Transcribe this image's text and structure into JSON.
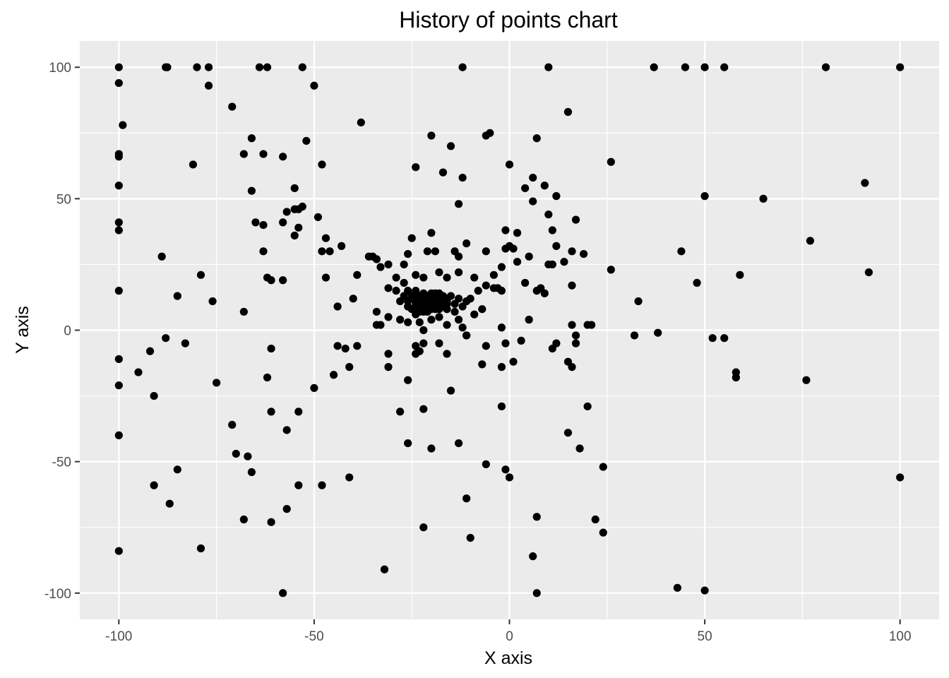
{
  "colors": {
    "panel_background": "#EBEBEB",
    "grid_major": "#FFFFFF",
    "point": "#000000",
    "tick_label": "#4D4D4D"
  },
  "chart_data": {
    "type": "scatter",
    "title": "History of points chart",
    "xlabel": "X axis",
    "ylabel": "Y axis",
    "xlim": [
      -110,
      110
    ],
    "ylim": [
      -110,
      110
    ],
    "x_ticks": [
      -100,
      -50,
      0,
      50,
      100
    ],
    "y_ticks": [
      -100,
      -50,
      0,
      50,
      100
    ],
    "x_tick_labels": [
      "-100",
      "-50",
      "0",
      "50",
      "100"
    ],
    "y_tick_labels": [
      "-100",
      "-50",
      "0",
      "50",
      "100"
    ],
    "grid": true,
    "legend": "none",
    "points": [
      [
        -100,
        100
      ],
      [
        -88,
        100
      ],
      [
        -80,
        100
      ],
      [
        -77,
        100
      ],
      [
        -64,
        100
      ],
      [
        -62,
        100
      ],
      [
        -53,
        100
      ],
      [
        -12,
        100
      ],
      [
        10,
        100
      ],
      [
        37,
        100
      ],
      [
        45,
        100
      ],
      [
        50,
        100
      ],
      [
        55,
        100
      ],
      [
        81,
        100
      ],
      [
        100,
        100
      ],
      [
        -87.6,
        100
      ],
      [
        -100,
        94
      ],
      [
        -50,
        93
      ],
      [
        -77,
        93
      ],
      [
        -71,
        85
      ],
      [
        -99,
        78
      ],
      [
        -38,
        79
      ],
      [
        15,
        83
      ],
      [
        -5,
        75
      ],
      [
        -6,
        74
      ],
      [
        -20,
        74
      ],
      [
        -66,
        73
      ],
      [
        -52,
        72
      ],
      [
        7,
        73
      ],
      [
        -15,
        70
      ],
      [
        -100,
        67
      ],
      [
        -100,
        66
      ],
      [
        -68,
        67
      ],
      [
        -63,
        67
      ],
      [
        -58,
        66
      ],
      [
        -81,
        63
      ],
      [
        -48,
        63
      ],
      [
        -24,
        62
      ],
      [
        0,
        63
      ],
      [
        26,
        64
      ],
      [
        -17,
        60
      ],
      [
        -12,
        58
      ],
      [
        6,
        58
      ],
      [
        -100,
        55
      ],
      [
        4,
        54
      ],
      [
        9,
        55
      ],
      [
        12,
        51
      ],
      [
        50,
        51
      ],
      [
        65,
        50
      ],
      [
        91,
        56
      ],
      [
        -55,
        54
      ],
      [
        -66,
        53
      ],
      [
        -53,
        47
      ],
      [
        -55,
        46
      ],
      [
        -54,
        46
      ],
      [
        -57,
        45
      ],
      [
        -13,
        48
      ],
      [
        6,
        49
      ],
      [
        -49,
        43
      ],
      [
        -100,
        41
      ],
      [
        -100,
        38
      ],
      [
        -65,
        41
      ],
      [
        -63,
        40
      ],
      [
        -58,
        41
      ],
      [
        -54,
        39
      ],
      [
        -55,
        36
      ],
      [
        -47,
        35
      ],
      [
        -20,
        37
      ],
      [
        -1,
        38
      ],
      [
        2,
        37
      ],
      [
        10,
        44
      ],
      [
        17,
        42
      ],
      [
        11,
        38
      ],
      [
        -25,
        35
      ],
      [
        -43,
        32
      ],
      [
        -48,
        30
      ],
      [
        -46,
        30
      ],
      [
        -63,
        30
      ],
      [
        -89,
        28
      ],
      [
        -35,
        28
      ],
      [
        -36,
        28
      ],
      [
        -21,
        30
      ],
      [
        -14,
        30
      ],
      [
        -13,
        28
      ],
      [
        -19,
        30
      ],
      [
        -11,
        33
      ],
      [
        -6,
        30
      ],
      [
        -1,
        31
      ],
      [
        0,
        32
      ],
      [
        1,
        31
      ],
      [
        12,
        32
      ],
      [
        16,
        30
      ],
      [
        19,
        29
      ],
      [
        2,
        26
      ],
      [
        5,
        28
      ],
      [
        10,
        25
      ],
      [
        14,
        26
      ],
      [
        26,
        23
      ],
      [
        44,
        30
      ],
      [
        59,
        21
      ],
      [
        77,
        34
      ],
      [
        92,
        22
      ],
      [
        -79,
        21
      ],
      [
        -62,
        20
      ],
      [
        -61,
        19
      ],
      [
        -58,
        19
      ],
      [
        -47,
        20
      ],
      [
        -39,
        21
      ],
      [
        -34,
        27
      ],
      [
        -33,
        24
      ],
      [
        -31,
        25
      ],
      [
        -29,
        20
      ],
      [
        -27,
        25
      ],
      [
        -26,
        29
      ],
      [
        -24,
        21
      ],
      [
        -22,
        20
      ],
      [
        -18,
        22
      ],
      [
        -16,
        20
      ],
      [
        -13,
        22
      ],
      [
        -9,
        20
      ],
      [
        -4,
        21
      ],
      [
        -2,
        24
      ],
      [
        4,
        18
      ],
      [
        11,
        25
      ],
      [
        48,
        18
      ],
      [
        -100,
        15
      ],
      [
        -85,
        13
      ],
      [
        -76,
        11
      ],
      [
        -68,
        7
      ],
      [
        -44,
        9
      ],
      [
        -40,
        12
      ],
      [
        -31,
        16
      ],
      [
        -29,
        15
      ],
      [
        -27,
        18
      ],
      [
        -26,
        15
      ],
      [
        -25,
        12
      ],
      [
        -24,
        10
      ],
      [
        -23,
        9
      ],
      [
        -22,
        14
      ],
      [
        -21,
        11
      ],
      [
        -20,
        10
      ],
      [
        -19,
        12
      ],
      [
        -18,
        11
      ],
      [
        -17,
        9
      ],
      [
        -16,
        8
      ],
      [
        -15,
        13
      ],
      [
        -14,
        10
      ],
      [
        -13,
        12
      ],
      [
        -12,
        9
      ],
      [
        -11,
        11
      ],
      [
        -10,
        12
      ],
      [
        -8,
        15
      ],
      [
        -6,
        17
      ],
      [
        -4,
        16
      ],
      [
        -3,
        16
      ],
      [
        -2,
        15
      ],
      [
        7,
        15
      ],
      [
        8,
        16
      ],
      [
        9,
        14
      ],
      [
        16,
        17
      ],
      [
        33,
        11
      ],
      [
        -28,
        11
      ],
      [
        -27,
        13
      ],
      [
        -26,
        9
      ],
      [
        -25,
        8
      ],
      [
        -24,
        11
      ],
      [
        -23,
        13
      ],
      [
        -22,
        10
      ],
      [
        -21,
        8
      ],
      [
        -20,
        13
      ],
      [
        -19,
        9
      ],
      [
        -18,
        8
      ],
      [
        -23,
        7
      ],
      [
        -22,
        8
      ],
      [
        -21,
        12
      ],
      [
        -20,
        12
      ],
      [
        -19,
        14
      ],
      [
        -18,
        13
      ],
      [
        -17,
        12
      ],
      [
        -24,
        15
      ],
      [
        -23,
        12
      ],
      [
        -22,
        11
      ],
      [
        -21,
        9
      ],
      [
        -20,
        9
      ],
      [
        -19,
        11
      ],
      [
        -18,
        10
      ],
      [
        -17,
        11
      ],
      [
        -23,
        10
      ],
      [
        -21,
        13
      ],
      [
        -22,
        7
      ],
      [
        -20,
        14
      ],
      [
        -19,
        8
      ],
      [
        -18,
        12
      ],
      [
        -17,
        10
      ],
      [
        -16,
        11
      ],
      [
        -24,
        9
      ],
      [
        -23,
        11
      ],
      [
        -22,
        12
      ],
      [
        -21,
        10
      ],
      [
        -20,
        8
      ],
      [
        -19,
        10
      ],
      [
        -18,
        9
      ],
      [
        -16,
        10
      ],
      [
        -25,
        13
      ],
      [
        -26,
        11
      ],
      [
        -24,
        13
      ],
      [
        -22,
        13
      ],
      [
        -21,
        7
      ],
      [
        -20,
        11
      ],
      [
        -19,
        13
      ],
      [
        -18,
        14
      ],
      [
        -17,
        13
      ],
      [
        -16,
        12
      ],
      [
        -34,
        7
      ],
      [
        -33,
        2
      ],
      [
        -31,
        5
      ],
      [
        -28,
        4
      ],
      [
        -26,
        3
      ],
      [
        -24,
        6
      ],
      [
        -23,
        3
      ],
      [
        -22,
        0
      ],
      [
        -20,
        4
      ],
      [
        -18,
        5
      ],
      [
        -16,
        2
      ],
      [
        -14,
        7
      ],
      [
        -13,
        4
      ],
      [
        -12,
        1
      ],
      [
        -11,
        -2
      ],
      [
        -9,
        6
      ],
      [
        -7,
        8
      ],
      [
        -2,
        1
      ],
      [
        5,
        4
      ],
      [
        16,
        2
      ],
      [
        20,
        2
      ],
      [
        21,
        2
      ],
      [
        17,
        -2
      ],
      [
        32,
        -2
      ],
      [
        38,
        -1
      ],
      [
        52,
        -3
      ],
      [
        55,
        -3
      ],
      [
        -34,
        2
      ],
      [
        -100,
        -11
      ],
      [
        -100,
        -21
      ],
      [
        -95,
        -16
      ],
      [
        -92,
        -8
      ],
      [
        -88,
        -3
      ],
      [
        -83,
        -5
      ],
      [
        -61,
        -7
      ],
      [
        -44,
        -6
      ],
      [
        -42,
        -7
      ],
      [
        -39,
        -6
      ],
      [
        -31,
        -9
      ],
      [
        -24,
        -6
      ],
      [
        -23,
        -8
      ],
      [
        -22,
        -5
      ],
      [
        -18,
        -5
      ],
      [
        -16,
        -9
      ],
      [
        -11,
        -2
      ],
      [
        -7,
        -13
      ],
      [
        -6,
        -6
      ],
      [
        -2,
        -14
      ],
      [
        -1,
        -5
      ],
      [
        1,
        -12
      ],
      [
        3,
        -4
      ],
      [
        11,
        -7
      ],
      [
        12,
        -5
      ],
      [
        15,
        -12
      ],
      [
        16,
        -14
      ],
      [
        17,
        -5
      ],
      [
        -24,
        -9
      ],
      [
        -41,
        -14
      ],
      [
        -45,
        -17
      ],
      [
        -50,
        -22
      ],
      [
        -62,
        -18
      ],
      [
        -75,
        -20
      ],
      [
        -91,
        -25
      ],
      [
        -26,
        -19
      ],
      [
        -15,
        -23
      ],
      [
        -2,
        -29
      ],
      [
        20,
        -29
      ],
      [
        58,
        -16
      ],
      [
        58,
        -18
      ],
      [
        76,
        -19
      ],
      [
        -31,
        -14
      ],
      [
        -28,
        -31
      ],
      [
        -22,
        -30
      ],
      [
        -61,
        -31
      ],
      [
        -54,
        -31
      ],
      [
        -71,
        -36
      ],
      [
        -57,
        -38
      ],
      [
        -100,
        -40
      ],
      [
        -70,
        -47
      ],
      [
        -67,
        -48
      ],
      [
        -26,
        -43
      ],
      [
        -13,
        -43
      ],
      [
        -20,
        -45
      ],
      [
        15,
        -39
      ],
      [
        18,
        -45
      ],
      [
        -85,
        -53
      ],
      [
        -66,
        -54
      ],
      [
        -6,
        -51
      ],
      [
        -1,
        -53
      ],
      [
        24,
        -52
      ],
      [
        -91,
        -59
      ],
      [
        -54,
        -59
      ],
      [
        -48,
        -59
      ],
      [
        -41,
        -56
      ],
      [
        0,
        -56
      ],
      [
        100,
        -56
      ],
      [
        -87,
        -66
      ],
      [
        -57,
        -68
      ],
      [
        -11,
        -64
      ],
      [
        -68,
        -72
      ],
      [
        -61,
        -73
      ],
      [
        7,
        -71
      ],
      [
        22,
        -72
      ],
      [
        -22,
        -75
      ],
      [
        -10,
        -79
      ],
      [
        24,
        -77
      ],
      [
        -79,
        -83
      ],
      [
        -100,
        -84
      ],
      [
        -32,
        -91
      ],
      [
        6,
        -86
      ],
      [
        -58,
        -100
      ],
      [
        7,
        -100
      ],
      [
        43,
        -98
      ],
      [
        50,
        -99
      ]
    ]
  }
}
